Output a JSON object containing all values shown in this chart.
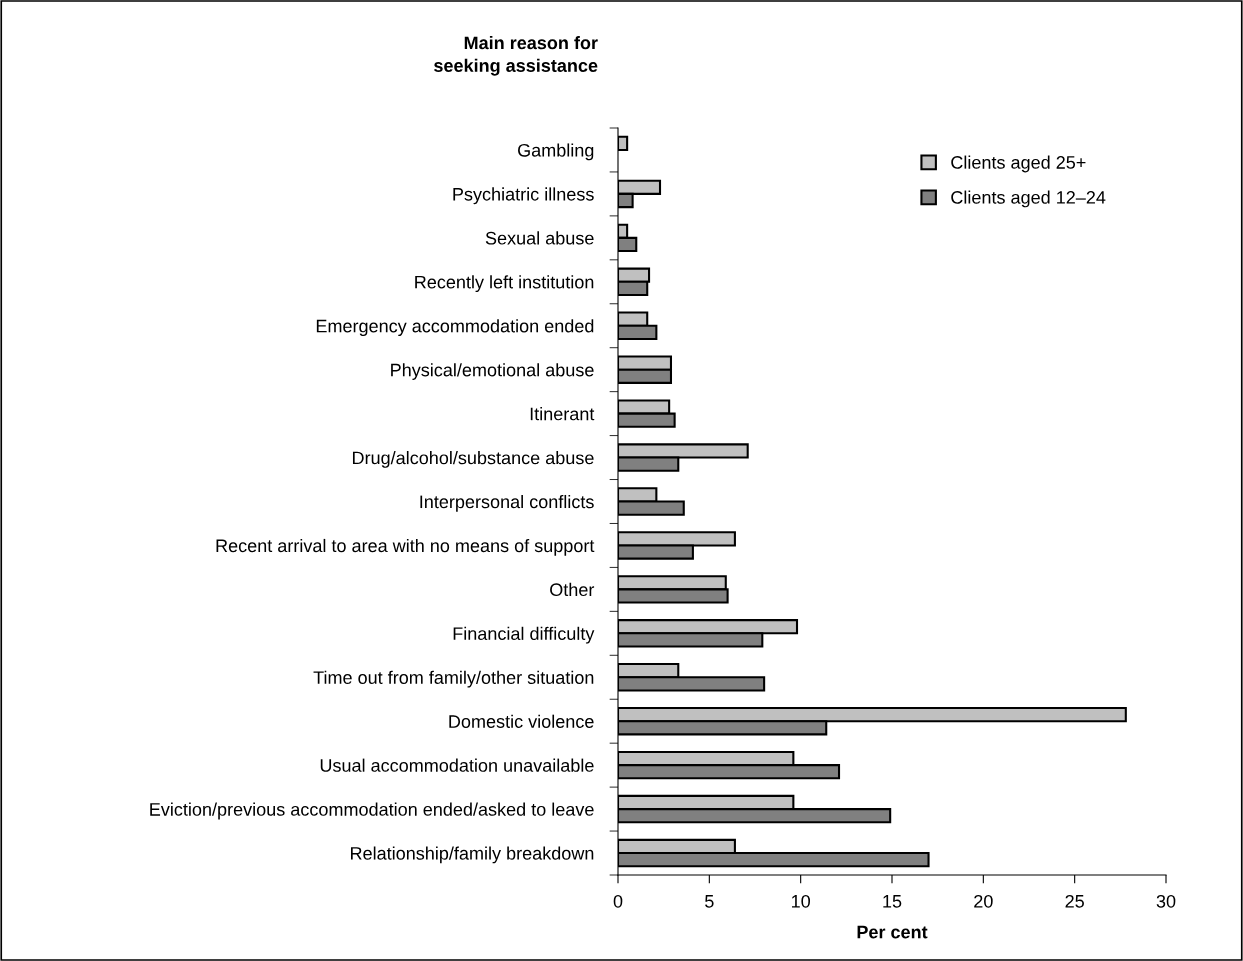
{
  "chart_data": {
    "type": "bar",
    "orientation": "horizontal",
    "annotations": [
      "Main reason for seeking assistance"
    ],
    "xlabel": "Per cent",
    "categories": [
      "Gambling",
      "Psychiatric illness",
      "Sexual abuse",
      "Recently left institution",
      "Emergency accommodation ended",
      "Physical/emotional abuse",
      "Itinerant",
      "Drug/alcohol/substance abuse",
      "Interpersonal conflicts",
      "Recent arrival to area with no means of support",
      "Other",
      "Financial difficulty",
      "Time out from family/other situation",
      "Domestic violence",
      "Usual accommodation unavailable",
      "Eviction/previous accommodation ended/asked to leave",
      "Relationship/family breakdown"
    ],
    "series": [
      {
        "name": "Clients aged 25+",
        "color": "#c0c0c0",
        "values": [
          0.5,
          2.3,
          0.5,
          1.7,
          1.6,
          2.9,
          2.8,
          7.1,
          2.1,
          6.4,
          5.9,
          9.8,
          3.3,
          27.8,
          9.6,
          9.6,
          6.4
        ]
      },
      {
        "name": "Clients aged 12–24",
        "color": "#808080",
        "values": [
          null,
          0.8,
          1.0,
          1.6,
          2.1,
          2.9,
          3.1,
          3.3,
          3.6,
          4.1,
          6.0,
          7.9,
          8.0,
          11.4,
          12.1,
          14.9,
          17.0
        ]
      }
    ],
    "xlim": [
      0,
      30
    ],
    "xticks": [
      0,
      5,
      10,
      15,
      20,
      25,
      30
    ],
    "legend": "top right",
    "grid": false
  }
}
